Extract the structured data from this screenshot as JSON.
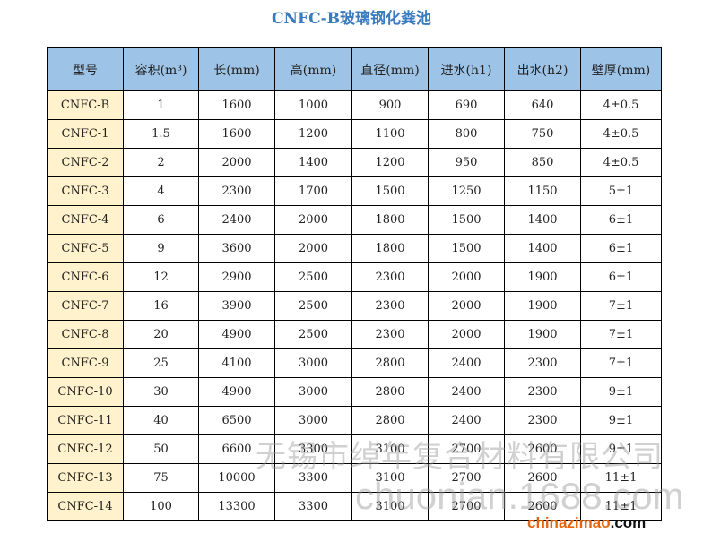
{
  "title": "CNFC-B玻璃钢化粪池",
  "table": {
    "headers": [
      "型号",
      "容积(m³)",
      "长(mm)",
      "高(mm)",
      "直径(mm)",
      "进水(h1)",
      "出水(h2)",
      "壁厚(mm)"
    ],
    "rows": [
      [
        "CNFC-B",
        "1",
        "1600",
        "1000",
        "900",
        "690",
        "640",
        "4±0.5"
      ],
      [
        "CNFC-1",
        "1.5",
        "1600",
        "1200",
        "1100",
        "800",
        "750",
        "4±0.5"
      ],
      [
        "CNFC-2",
        "2",
        "2000",
        "1400",
        "1200",
        "950",
        "850",
        "4±0.5"
      ],
      [
        "CNFC-3",
        "4",
        "2300",
        "1700",
        "1500",
        "1250",
        "1150",
        "5±1"
      ],
      [
        "CNFC-4",
        "6",
        "2400",
        "2000",
        "1800",
        "1500",
        "1400",
        "6±1"
      ],
      [
        "CNFC-5",
        "9",
        "3600",
        "2000",
        "1800",
        "1500",
        "1400",
        "6±1"
      ],
      [
        "CNFC-6",
        "12",
        "2900",
        "2500",
        "2300",
        "2000",
        "1900",
        "6±1"
      ],
      [
        "CNFC-7",
        "16",
        "3900",
        "2500",
        "2300",
        "2000",
        "1900",
        "7±1"
      ],
      [
        "CNFC-8",
        "20",
        "4900",
        "2500",
        "2300",
        "2000",
        "1900",
        "7±1"
      ],
      [
        "CNFC-9",
        "25",
        "4100",
        "3000",
        "2800",
        "2400",
        "2300",
        "7±1"
      ],
      [
        "CNFC-10",
        "30",
        "4900",
        "3000",
        "2800",
        "2400",
        "2300",
        "9±1"
      ],
      [
        "CNFC-11",
        "40",
        "6500",
        "3000",
        "2800",
        "2400",
        "2300",
        "9±1"
      ],
      [
        "CNFC-12",
        "50",
        "6600",
        "3300",
        "3100",
        "2700",
        "2600",
        "9±1"
      ],
      [
        "CNFC-13",
        "75",
        "10000",
        "3300",
        "3100",
        "2700",
        "2600",
        "11±1"
      ],
      [
        "CNFC-14",
        "100",
        "13300",
        "3300",
        "3100",
        "2700",
        "2600",
        "11±1"
      ]
    ]
  },
  "watermarks": {
    "company": "无锡市绰年复合材料有限公司",
    "site": "chuonian.1688.com",
    "logo_a": "chinazimao",
    "logo_b": ".com"
  },
  "colors": {
    "header_bg": "#9dc3e6",
    "model_bg": "#fff2cc",
    "title": "#3a7bbf"
  }
}
